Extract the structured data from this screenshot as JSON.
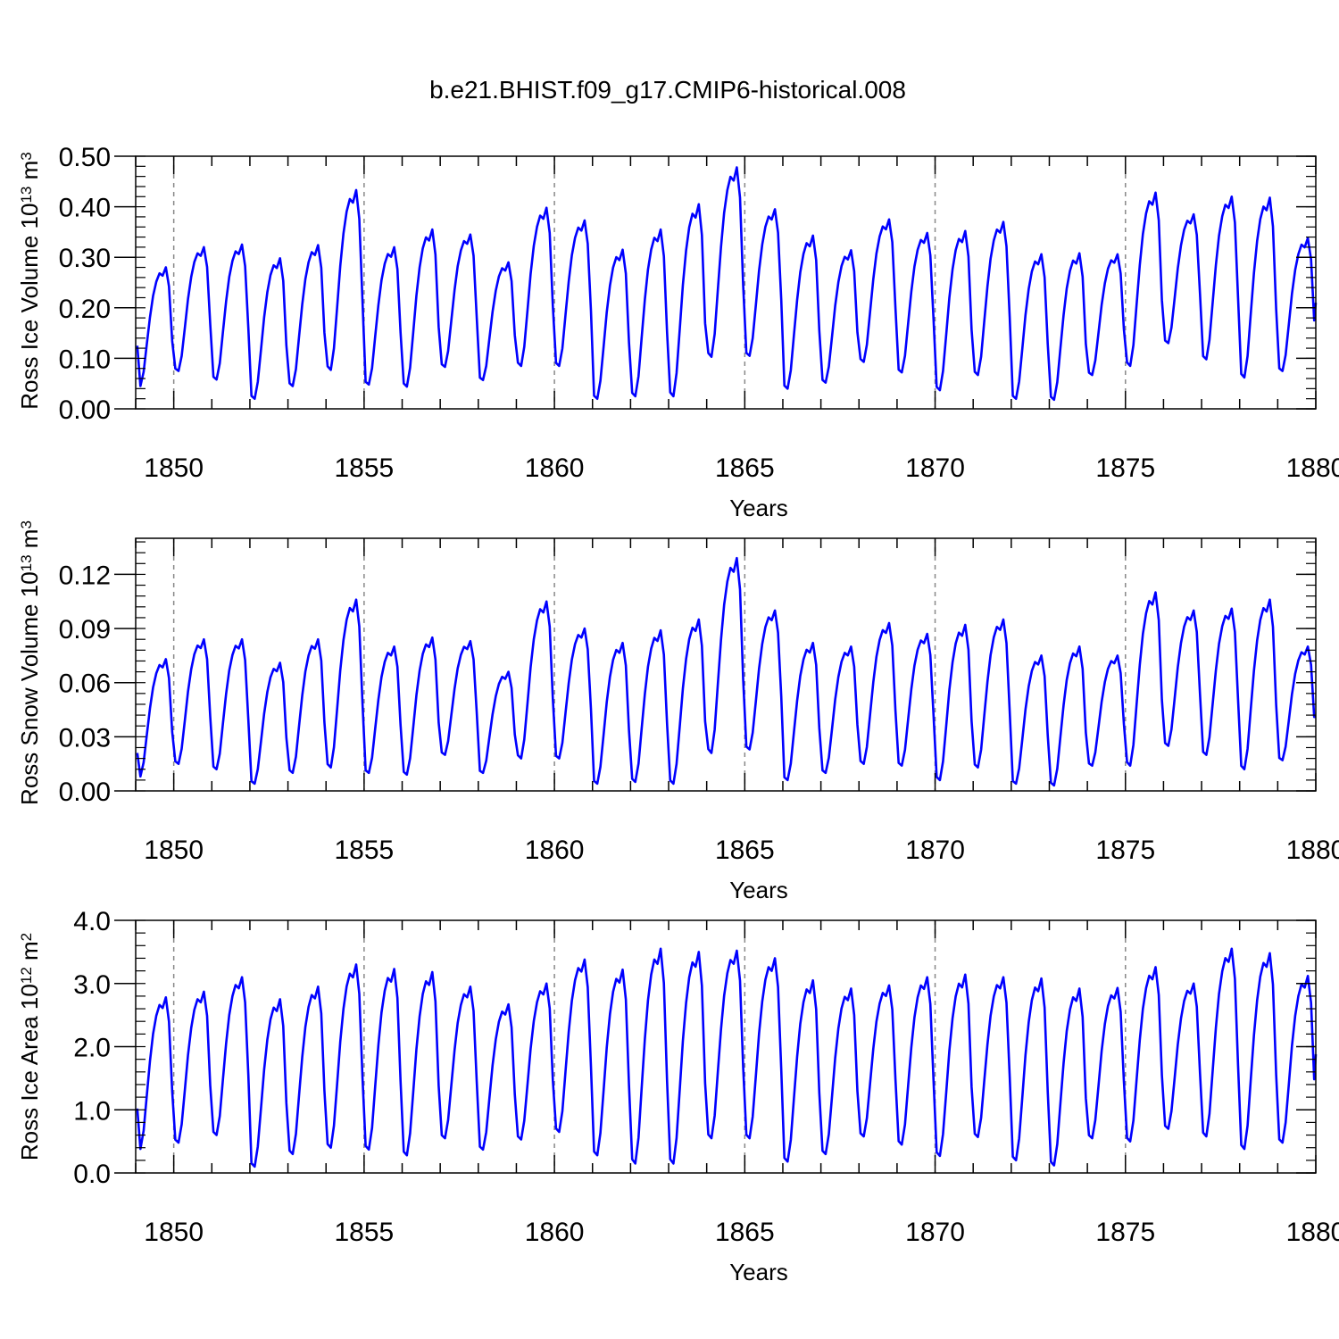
{
  "title": "b.e21.BHIST.f09_g17.CMIP6-historical.008",
  "line_color": "#0000ff",
  "chart_data": [
    {
      "type": "line",
      "xlabel": "Years",
      "ylabel_main": "Ross Ice Volume 10",
      "ylabel_exp": "13",
      "ylabel_unit": " m",
      "ylabel_unit_exp": "3",
      "xlim": [
        1849,
        1880
      ],
      "ylim": [
        0,
        0.5
      ],
      "x_ticks": [
        1850,
        1855,
        1860,
        1865,
        1870,
        1875,
        1880
      ],
      "x_tick_labels": [
        "1850",
        "1855",
        "1860",
        "1865",
        "1870",
        "1875",
        "1880"
      ],
      "y_ticks": [
        0,
        0.1,
        0.2,
        0.3,
        0.4,
        0.5
      ],
      "y_tick_labels": [
        "0.00",
        "0.10",
        "0.20",
        "0.30",
        "0.40",
        "0.50"
      ],
      "grid": "dashed vertical lines every 5 years",
      "annual_max": [
        0.28,
        0.32,
        0.325,
        0.298,
        0.324,
        0.433,
        0.32,
        0.355,
        0.345,
        0.29,
        0.398,
        0.373,
        0.315,
        0.355,
        0.405,
        0.478,
        0.395,
        0.343,
        0.314,
        0.375,
        0.348,
        0.352,
        0.37,
        0.306,
        0.308,
        0.306,
        0.428,
        0.385,
        0.42,
        0.418,
        0.338
      ],
      "annual_min": [
        0.045,
        0.075,
        0.058,
        0.02,
        0.045,
        0.077,
        0.048,
        0.044,
        0.083,
        0.057,
        0.085,
        0.085,
        0.02,
        0.025,
        0.025,
        0.103,
        0.105,
        0.04,
        0.052,
        0.093,
        0.072,
        0.037,
        0.067,
        0.02,
        0.018,
        0.067,
        0.085,
        0.13,
        0.098,
        0.062,
        0.075
      ],
      "start_value": 0.125,
      "end_value": 0.21
    },
    {
      "type": "line",
      "xlabel": "Years",
      "ylabel_main": "Ross Snow Volume 10",
      "ylabel_exp": "13",
      "ylabel_unit": " m",
      "ylabel_unit_exp": "3",
      "xlim": [
        1849,
        1880
      ],
      "ylim": [
        0,
        0.14
      ],
      "x_ticks": [
        1850,
        1855,
        1860,
        1865,
        1870,
        1875,
        1880
      ],
      "x_tick_labels": [
        "1850",
        "1855",
        "1860",
        "1865",
        "1870",
        "1875",
        "1880"
      ],
      "y_ticks": [
        0,
        0.03,
        0.06,
        0.09,
        0.12
      ],
      "y_tick_labels": [
        "0.00",
        "0.03",
        "0.06",
        "0.09",
        "0.12"
      ],
      "grid": "dashed vertical lines every 5 years",
      "annual_max": [
        0.073,
        0.084,
        0.084,
        0.071,
        0.084,
        0.106,
        0.08,
        0.085,
        0.083,
        0.066,
        0.105,
        0.09,
        0.082,
        0.089,
        0.095,
        0.129,
        0.1,
        0.082,
        0.08,
        0.093,
        0.087,
        0.092,
        0.095,
        0.075,
        0.08,
        0.075,
        0.11,
        0.1,
        0.101,
        0.106,
        0.08
      ],
      "annual_min": [
        0.008,
        0.015,
        0.012,
        0.004,
        0.01,
        0.013,
        0.01,
        0.009,
        0.02,
        0.01,
        0.018,
        0.018,
        0.004,
        0.005,
        0.004,
        0.021,
        0.023,
        0.006,
        0.01,
        0.015,
        0.014,
        0.006,
        0.013,
        0.004,
        0.003,
        0.014,
        0.014,
        0.025,
        0.02,
        0.012,
        0.017
      ],
      "start_value": 0.021,
      "end_value": 0.041
    },
    {
      "type": "line",
      "xlabel": "Years",
      "ylabel_main": "Ross Ice Area 10",
      "ylabel_exp": "12",
      "ylabel_unit": " m",
      "ylabel_unit_exp": "2",
      "xlim": [
        1849,
        1880
      ],
      "ylim": [
        0,
        4.0
      ],
      "x_ticks": [
        1850,
        1855,
        1860,
        1865,
        1870,
        1875,
        1880
      ],
      "x_tick_labels": [
        "1850",
        "1855",
        "1860",
        "1865",
        "1870",
        "1875",
        "1880"
      ],
      "y_ticks": [
        0,
        1,
        2,
        3,
        4
      ],
      "y_tick_labels": [
        "0.0",
        "1.0",
        "2.0",
        "3.0",
        "4.0"
      ],
      "grid": "dashed vertical lines every 5 years",
      "annual_max": [
        2.78,
        2.87,
        3.1,
        2.75,
        2.95,
        3.3,
        3.23,
        3.18,
        2.95,
        2.67,
        3.0,
        3.38,
        3.22,
        3.55,
        3.5,
        3.52,
        3.4,
        3.05,
        2.92,
        2.97,
        3.1,
        3.14,
        3.1,
        3.08,
        2.92,
        2.93,
        3.26,
        3.0,
        3.55,
        3.48,
        3.12
      ],
      "annual_min": [
        0.38,
        0.48,
        0.6,
        0.1,
        0.3,
        0.4,
        0.37,
        0.28,
        0.55,
        0.37,
        0.53,
        0.65,
        0.28,
        0.15,
        0.15,
        0.55,
        0.55,
        0.18,
        0.3,
        0.58,
        0.45,
        0.27,
        0.57,
        0.2,
        0.12,
        0.55,
        0.5,
        0.7,
        0.58,
        0.38,
        0.48
      ],
      "start_value": 1.02,
      "end_value": 1.88
    }
  ]
}
